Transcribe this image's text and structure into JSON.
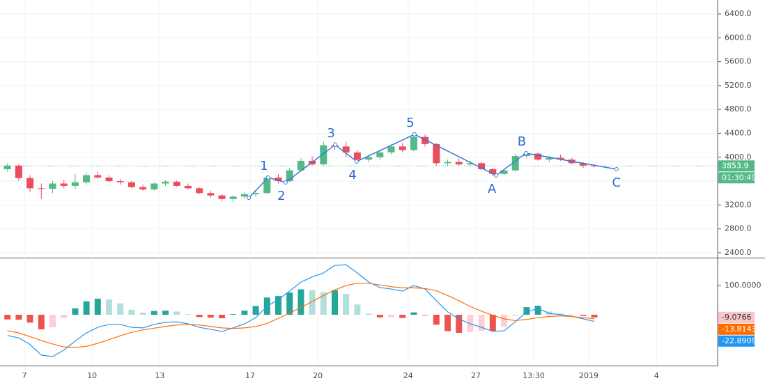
{
  "chart_data": [
    {
      "type": "candlestick",
      "x": [
        -0.75,
        -0.25,
        0.25,
        0.75,
        1.25,
        1.75,
        2.25,
        2.75,
        3.25,
        3.75,
        4.25,
        4.75,
        5.25,
        5.75,
        6.25,
        6.75,
        7.25,
        7.75,
        8.25,
        8.75,
        9.25,
        9.75,
        10.25,
        10.75,
        11.25,
        11.75,
        12.25,
        12.75,
        13.25,
        13.75,
        14.25,
        14.75,
        15.25,
        15.75,
        16.25,
        16.75,
        17.25,
        17.75,
        18.25,
        18.75,
        19.25,
        19.75,
        20.25,
        20.75,
        21.25,
        21.75,
        22.25,
        22.75,
        23.25,
        23.75,
        24.25,
        24.75,
        25.25
      ],
      "open": [
        3800,
        3860,
        3650,
        3480,
        3470,
        3560,
        3520,
        3580,
        3700,
        3660,
        3600,
        3580,
        3500,
        3460,
        3560,
        3590,
        3520,
        3480,
        3400,
        3360,
        3300,
        3340,
        3380,
        3400,
        3660,
        3600,
        3780,
        3940,
        3880,
        4200,
        4180,
        4080,
        3960,
        4000,
        4080,
        4180,
        4120,
        4340,
        4220,
        3900,
        3920,
        3880,
        3900,
        3800,
        3720,
        3780,
        4020,
        4060,
        3960,
        3990,
        3960,
        3900,
        3860
      ],
      "high": [
        3900,
        3880,
        3700,
        3560,
        3600,
        3620,
        3720,
        3740,
        3760,
        3700,
        3640,
        3600,
        3540,
        3580,
        3620,
        3610,
        3560,
        3500,
        3440,
        3380,
        3360,
        3420,
        3440,
        3700,
        3720,
        3820,
        3980,
        4010,
        4260,
        4260,
        4260,
        4120,
        4040,
        4120,
        4220,
        4240,
        4400,
        4380,
        4240,
        3960,
        3980,
        3940,
        3920,
        3820,
        3800,
        4060,
        4100,
        4080,
        4020,
        4040,
        3990,
        3920,
        3880
      ],
      "low": [
        3760,
        3600,
        3420,
        3300,
        3400,
        3480,
        3460,
        3540,
        3640,
        3580,
        3540,
        3480,
        3440,
        3440,
        3520,
        3500,
        3460,
        3380,
        3320,
        3260,
        3240,
        3300,
        3340,
        3380,
        3560,
        3580,
        3760,
        3860,
        3860,
        4120,
        4000,
        3900,
        3920,
        3960,
        4040,
        4080,
        4100,
        4180,
        3860,
        3860,
        3860,
        3840,
        3780,
        3680,
        3700,
        3760,
        3980,
        3940,
        3920,
        3940,
        3880,
        3820,
        3830
      ],
      "close": [
        3860,
        3650,
        3480,
        3470,
        3560,
        3520,
        3580,
        3700,
        3660,
        3600,
        3580,
        3500,
        3460,
        3560,
        3590,
        3520,
        3480,
        3400,
        3360,
        3300,
        3340,
        3380,
        3400,
        3660,
        3600,
        3780,
        3940,
        3880,
        4200,
        4180,
        4080,
        3960,
        4000,
        4080,
        4180,
        4120,
        4340,
        4220,
        3900,
        3920,
        3880,
        3900,
        3800,
        3720,
        3780,
        4020,
        4060,
        3960,
        3990,
        3960,
        3900,
        3860,
        3853.9
      ],
      "up_color": "#53b987",
      "down_color": "#eb4d5c",
      "xlim": [
        -1.08,
        30.71
      ],
      "xticks": [
        {
          "value": 0,
          "label": "7"
        },
        {
          "value": 3,
          "label": "10"
        },
        {
          "value": 6,
          "label": "13"
        },
        {
          "value": 10,
          "label": "17"
        },
        {
          "value": 13,
          "label": "20"
        },
        {
          "value": 17,
          "label": "24"
        },
        {
          "value": 20,
          "label": "27"
        },
        {
          "value": 22.5625,
          "label": "13:30"
        },
        {
          "value": 25,
          "label": "2019"
        },
        {
          "value": 28,
          "label": "4"
        }
      ],
      "ylim": [
        2318,
        6633
      ],
      "yticks": [
        {
          "value": 2400,
          "label": "2400.0"
        },
        {
          "value": 2800,
          "label": "2800.0"
        },
        {
          "value": 3200,
          "label": "3200.0"
        },
        {
          "value": 3600,
          "label": "3600.0"
        },
        {
          "value": 4000,
          "label": "4000.0"
        },
        {
          "value": 4400,
          "label": "4400.0"
        },
        {
          "value": 4800,
          "label": "4800.0"
        },
        {
          "value": 5200,
          "label": "5200.0"
        },
        {
          "value": 5600,
          "label": "5600.0"
        },
        {
          "value": 6000,
          "label": "6000.0"
        },
        {
          "value": 6400,
          "label": "6400.0"
        }
      ],
      "grid": true,
      "countdown": "01:30:49",
      "waves": {
        "x": [
          9.94,
          10.8,
          11.57,
          13.77,
          14.72,
          17.28,
          20.9,
          22.22,
          26.23
        ],
        "y": [
          3321,
          3659,
          3578,
          4208,
          3928,
          4383,
          3695,
          4068,
          3799
        ],
        "labels": [
          null,
          "1",
          "2",
          "3",
          "4",
          "5",
          "A",
          "B",
          "C"
        ],
        "color": "#3b78d8"
      }
    },
    {
      "type": "macd",
      "ylim": [
        -174,
        193
      ],
      "yticks": [
        {
          "value": 100,
          "label": "100.0000"
        }
      ],
      "series": [
        {
          "name": "Histogram",
          "kind": "histogram",
          "colors": [
            "#26a69a",
            "#b2dfdb",
            "#ef5350",
            "#ffcdd2"
          ],
          "color": "#f8c6ca",
          "values": [
            -16,
            -17,
            -27,
            -50,
            -43,
            -11,
            22,
            46,
            55,
            52,
            39,
            17,
            7,
            13,
            14,
            11,
            2,
            -8,
            -10,
            -12,
            2,
            14,
            30,
            59,
            64,
            76,
            87,
            84,
            77,
            84,
            71,
            35,
            4,
            -9,
            -8,
            -11,
            8,
            -2,
            -34,
            -56,
            -62,
            -59,
            -55,
            -55,
            -41,
            -4,
            26,
            31,
            11,
            4,
            1,
            -4,
            -9.0766
          ]
        },
        {
          "name": "MACD",
          "kind": "line",
          "color": "#2196f3",
          "values": [
            -71,
            -79,
            -102,
            -138,
            -143,
            -121,
            -90,
            -62,
            -43,
            -33,
            -33,
            -43,
            -45,
            -33,
            -26,
            -24,
            -31,
            -43,
            -50,
            -57,
            -45,
            -31,
            -10,
            29,
            52,
            81,
            112,
            129,
            143,
            169,
            171,
            143,
            112,
            93,
            88,
            81,
            100,
            88,
            48,
            10,
            -14,
            -31,
            -43,
            -57,
            -55,
            -24,
            10,
            21,
            5,
            0,
            -5,
            -14,
            -22.8909
          ]
        },
        {
          "name": "Signal",
          "kind": "line",
          "color": "#ff6d00",
          "values": [
            -55,
            -62,
            -75,
            -88,
            -100,
            -110,
            -112,
            -108,
            -98,
            -85,
            -72,
            -60,
            -52,
            -46,
            -40,
            -35,
            -33,
            -35,
            -40,
            -45,
            -47,
            -45,
            -40,
            -30,
            -12,
            5,
            25,
            45,
            66,
            85,
            100,
            108,
            108,
            102,
            96,
            92,
            92,
            90,
            82,
            66,
            48,
            28,
            12,
            -2,
            -14,
            -20,
            -16,
            -10,
            -6,
            -4,
            -6,
            -10,
            -13.8143
          ]
        }
      ]
    }
  ]
}
